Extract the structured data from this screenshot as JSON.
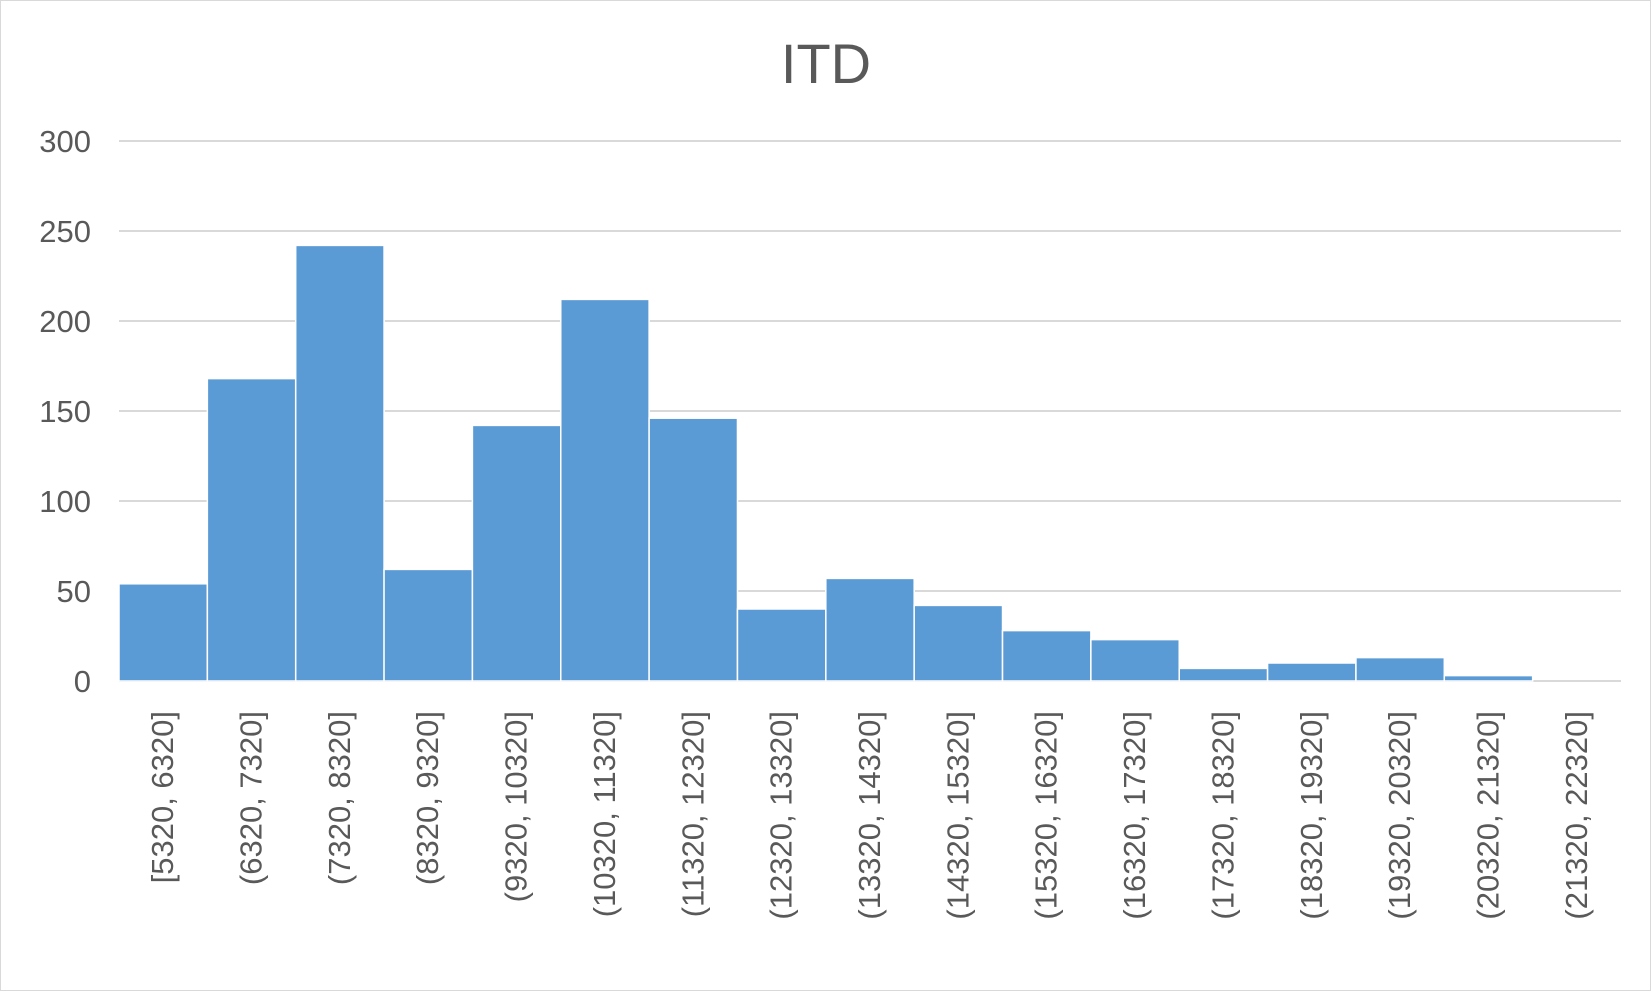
{
  "chart_data": {
    "type": "bar",
    "title": "ITD",
    "xlabel": "",
    "ylabel": "",
    "ylim": [
      0,
      300
    ],
    "yticks": [
      0,
      50,
      100,
      150,
      200,
      250,
      300
    ],
    "grid": true,
    "legend": "none",
    "bar_color": "#5b9bd5",
    "categories": [
      "[5320, 6320]",
      "(6320, 7320]",
      "(7320, 8320]",
      "(8320, 9320]",
      "(9320, 10320]",
      "(10320, 11320]",
      "(11320, 12320]",
      "(12320, 13320]",
      "(13320, 14320]",
      "(14320, 15320]",
      "(15320, 16320]",
      "(16320, 17320]",
      "(17320, 18320]",
      "(18320, 19320]",
      "(19320, 20320]",
      "(20320, 21320]",
      "(21320, 22320]"
    ],
    "values": [
      54,
      168,
      242,
      62,
      142,
      212,
      146,
      40,
      57,
      42,
      28,
      23,
      7,
      10,
      13,
      3,
      0
    ]
  }
}
